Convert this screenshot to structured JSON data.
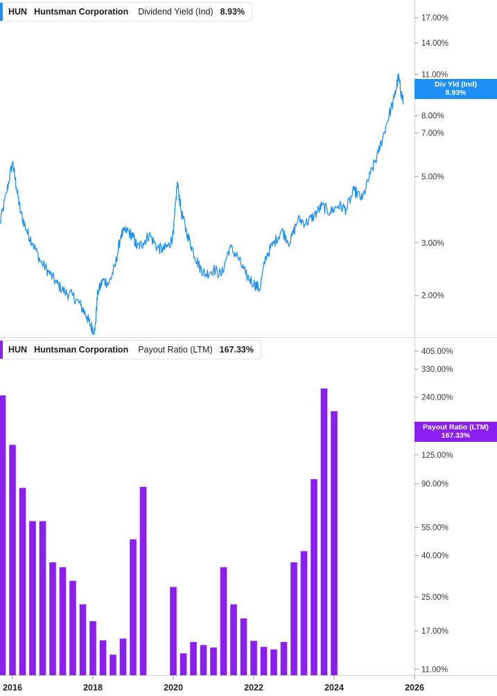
{
  "chart_data": [
    {
      "type": "line",
      "ticker": "HUN",
      "company": "Huntsman Corporation",
      "metric": "Dividend Yield (Ind)",
      "current_value": "8.93%",
      "tag_title": "Div Yld (Ind)",
      "tag_value": "8.93%",
      "color": "#1e90f5",
      "y_scale": "log",
      "ylim": [
        1.45,
        19.5
      ],
      "y_ticks": [
        {
          "value": 17,
          "label": "17.00%"
        },
        {
          "value": 14,
          "label": "14.00%"
        },
        {
          "value": 11,
          "label": "11.00%"
        },
        {
          "value": 8,
          "label": "8.00%"
        },
        {
          "value": 7,
          "label": "7.00%"
        },
        {
          "value": 5,
          "label": "5.00%"
        },
        {
          "value": 3,
          "label": "3.00%"
        },
        {
          "value": 2,
          "label": "2.00%"
        }
      ],
      "series": [
        {
          "x": [
            2015.67,
            2015.85,
            2016.0,
            2016.1,
            2016.2,
            2016.35,
            2016.5,
            2016.7,
            2016.9,
            2017.1,
            2017.3,
            2017.5,
            2017.7,
            2017.85,
            2017.95,
            2018.05,
            2018.12,
            2018.25,
            2018.4,
            2018.55,
            2018.7,
            2018.85,
            2019.0,
            2019.1,
            2019.25,
            2019.4,
            2019.6,
            2019.75,
            2019.9,
            2020.0,
            2020.1,
            2020.2,
            2020.35,
            2020.5,
            2020.65,
            2020.8,
            2021.0,
            2021.2,
            2021.4,
            2021.6,
            2021.8,
            2022.0,
            2022.15,
            2022.3,
            2022.5,
            2022.7,
            2022.9,
            2023.1,
            2023.3,
            2023.5,
            2023.7,
            2023.9,
            2024.1,
            2024.3,
            2024.5,
            2024.7,
            2024.9,
            2025.1,
            2025.3,
            2025.5,
            2025.6,
            2025.67,
            2025.72
          ],
          "y": [
            3.4,
            4.4,
            5.6,
            4.6,
            3.8,
            3.3,
            3.0,
            2.6,
            2.4,
            2.2,
            2.05,
            2.0,
            1.85,
            1.7,
            1.58,
            1.52,
            2.05,
            2.25,
            2.2,
            2.5,
            3.2,
            3.3,
            3.15,
            2.9,
            3.0,
            3.2,
            2.9,
            2.85,
            2.95,
            3.2,
            4.8,
            3.8,
            3.2,
            2.8,
            2.5,
            2.35,
            2.45,
            2.35,
            2.9,
            2.7,
            2.35,
            2.2,
            2.1,
            2.7,
            3.0,
            3.3,
            3.0,
            3.6,
            3.5,
            3.7,
            4.0,
            3.8,
            4.0,
            3.9,
            4.5,
            4.2,
            5.1,
            6.0,
            7.5,
            9.2,
            10.8,
            9.5,
            8.93
          ]
        }
      ],
      "x_ticks": [
        2016,
        2018,
        2020,
        2022,
        2024,
        2026
      ]
    },
    {
      "type": "bar",
      "ticker": "HUN",
      "company": "Huntsman Corporation",
      "metric": "Payout Ratio (LTM)",
      "current_value": "167.33%",
      "tag_title": "Payout Ratio (LTM)",
      "tag_value": "167.33%",
      "color": "#8b1ff0",
      "y_scale": "log",
      "ylim": [
        10.3,
        470
      ],
      "y_ticks": [
        {
          "value": 405,
          "label": "405.00%"
        },
        {
          "value": 330,
          "label": "330.00%"
        },
        {
          "value": 240,
          "label": "240.00%"
        },
        {
          "value": 125,
          "label": "125.00%"
        },
        {
          "value": 90,
          "label": "90.00%"
        },
        {
          "value": 55,
          "label": "55.00%"
        },
        {
          "value": 40,
          "label": "40.00%"
        },
        {
          "value": 25,
          "label": "25.00%"
        },
        {
          "value": 17,
          "label": "17.00%"
        },
        {
          "value": 11,
          "label": "11.00%"
        }
      ],
      "x": [
        2015.75,
        2016.0,
        2016.25,
        2016.5,
        2016.75,
        2017.0,
        2017.25,
        2017.5,
        2017.75,
        2018.0,
        2018.25,
        2018.5,
        2018.75,
        2019.0,
        2019.25,
        2019.5,
        2019.75,
        2020.0,
        2020.25,
        2020.5,
        2020.75,
        2021.0,
        2021.25,
        2021.5,
        2021.75,
        2022.0,
        2022.25,
        2022.5,
        2022.75,
        2023.0,
        2023.25,
        2023.5,
        2023.75,
        2024.0
      ],
      "values": [
        245,
        140,
        86,
        59,
        59,
        37,
        35,
        30,
        23,
        19,
        15.3,
        13,
        15.6,
        48,
        87,
        null,
        null,
        28,
        13.2,
        15,
        14.5,
        14.1,
        35,
        23,
        19.6,
        15.2,
        14.2,
        13.8,
        15,
        37,
        42,
        95,
        265,
        205
      ],
      "x_ticks": [
        2016,
        2018,
        2020,
        2022,
        2024,
        2026
      ]
    }
  ]
}
